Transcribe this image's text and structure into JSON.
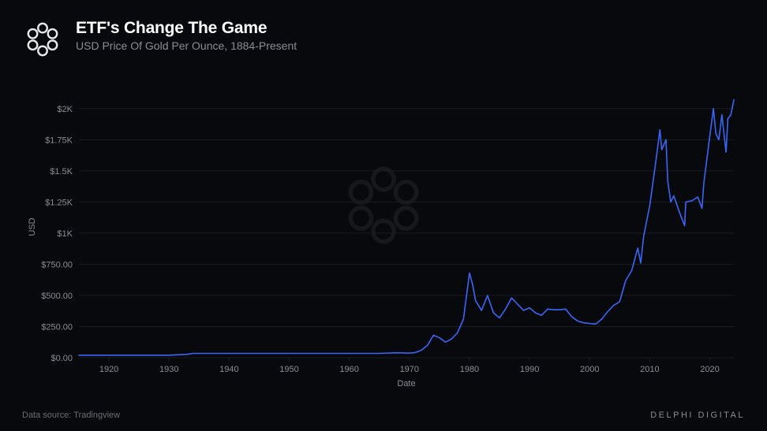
{
  "header": {
    "title": "ETF's Change The Game",
    "subtitle": "USD Price Of Gold Per Ounce, 1884-Present"
  },
  "footer": {
    "source_label": "Data source: Tradingview",
    "brand": "DELPHI DIGITAL"
  },
  "chart": {
    "type": "line",
    "background_color": "#08090c",
    "line_color": "#3a66f7",
    "line_width": 1.6,
    "grid_color": "#1a1c22",
    "axis_text_color": "#8b8d94",
    "title_color": "#ffffff",
    "subtitle_color": "#8b8d94",
    "xlabel": "Date",
    "ylabel": "USD",
    "xlim": [
      1915,
      2024
    ],
    "ylim": [
      0,
      2100
    ],
    "xticks": [
      1920,
      1930,
      1940,
      1950,
      1960,
      1970,
      1980,
      1990,
      2000,
      2010,
      2020
    ],
    "yticks": [
      {
        "v": 0,
        "label": "$0.00"
      },
      {
        "v": 250,
        "label": "$250.00"
      },
      {
        "v": 500,
        "label": "$500.00"
      },
      {
        "v": 750,
        "label": "$750.00"
      },
      {
        "v": 1000,
        "label": "$1K"
      },
      {
        "v": 1250,
        "label": "$1.25K"
      },
      {
        "v": 1500,
        "label": "$1.5K"
      },
      {
        "v": 1750,
        "label": "$1.75K"
      },
      {
        "v": 2000,
        "label": "$2K"
      }
    ],
    "title_fontsize": 21,
    "subtitle_fontsize": 14,
    "axis_fontsize": 11,
    "series": [
      {
        "x": 1915,
        "y": 20
      },
      {
        "x": 1920,
        "y": 20
      },
      {
        "x": 1925,
        "y": 20
      },
      {
        "x": 1930,
        "y": 20
      },
      {
        "x": 1933,
        "y": 27
      },
      {
        "x": 1934,
        "y": 35
      },
      {
        "x": 1940,
        "y": 35
      },
      {
        "x": 1945,
        "y": 35
      },
      {
        "x": 1950,
        "y": 35
      },
      {
        "x": 1955,
        "y": 35
      },
      {
        "x": 1960,
        "y": 35
      },
      {
        "x": 1965,
        "y": 35
      },
      {
        "x": 1968,
        "y": 40
      },
      {
        "x": 1970,
        "y": 37
      },
      {
        "x": 1971,
        "y": 42
      },
      {
        "x": 1972,
        "y": 60
      },
      {
        "x": 1973,
        "y": 100
      },
      {
        "x": 1974,
        "y": 180
      },
      {
        "x": 1975,
        "y": 160
      },
      {
        "x": 1976,
        "y": 125
      },
      {
        "x": 1977,
        "y": 150
      },
      {
        "x": 1978,
        "y": 200
      },
      {
        "x": 1979,
        "y": 310
      },
      {
        "x": 1980,
        "y": 680
      },
      {
        "x": 1980.5,
        "y": 590
      },
      {
        "x": 1981,
        "y": 460
      },
      {
        "x": 1982,
        "y": 380
      },
      {
        "x": 1983,
        "y": 500
      },
      {
        "x": 1984,
        "y": 360
      },
      {
        "x": 1985,
        "y": 320
      },
      {
        "x": 1986,
        "y": 390
      },
      {
        "x": 1987,
        "y": 480
      },
      {
        "x": 1988,
        "y": 430
      },
      {
        "x": 1989,
        "y": 380
      },
      {
        "x": 1990,
        "y": 400
      },
      {
        "x": 1991,
        "y": 360
      },
      {
        "x": 1992,
        "y": 340
      },
      {
        "x": 1993,
        "y": 390
      },
      {
        "x": 1994,
        "y": 385
      },
      {
        "x": 1995,
        "y": 385
      },
      {
        "x": 1996,
        "y": 390
      },
      {
        "x": 1997,
        "y": 330
      },
      {
        "x": 1998,
        "y": 295
      },
      {
        "x": 1999,
        "y": 280
      },
      {
        "x": 2000,
        "y": 275
      },
      {
        "x": 2001,
        "y": 270
      },
      {
        "x": 2002,
        "y": 310
      },
      {
        "x": 2003,
        "y": 370
      },
      {
        "x": 2004,
        "y": 420
      },
      {
        "x": 2005,
        "y": 450
      },
      {
        "x": 2006,
        "y": 620
      },
      {
        "x": 2007,
        "y": 700
      },
      {
        "x": 2008,
        "y": 880
      },
      {
        "x": 2008.5,
        "y": 760
      },
      {
        "x": 2009,
        "y": 980
      },
      {
        "x": 2010,
        "y": 1220
      },
      {
        "x": 2011,
        "y": 1570
      },
      {
        "x": 2011.7,
        "y": 1830
      },
      {
        "x": 2012,
        "y": 1670
      },
      {
        "x": 2012.7,
        "y": 1750
      },
      {
        "x": 2013,
        "y": 1420
      },
      {
        "x": 2013.5,
        "y": 1250
      },
      {
        "x": 2014,
        "y": 1300
      },
      {
        "x": 2015,
        "y": 1160
      },
      {
        "x": 2015.8,
        "y": 1060
      },
      {
        "x": 2016,
        "y": 1250
      },
      {
        "x": 2017,
        "y": 1260
      },
      {
        "x": 2018,
        "y": 1290
      },
      {
        "x": 2018.7,
        "y": 1200
      },
      {
        "x": 2019,
        "y": 1400
      },
      {
        "x": 2020,
        "y": 1780
      },
      {
        "x": 2020.6,
        "y": 2000
      },
      {
        "x": 2021,
        "y": 1800
      },
      {
        "x": 2021.5,
        "y": 1750
      },
      {
        "x": 2022,
        "y": 1950
      },
      {
        "x": 2022.7,
        "y": 1650
      },
      {
        "x": 2023,
        "y": 1920
      },
      {
        "x": 2023.5,
        "y": 1950
      },
      {
        "x": 2024,
        "y": 2070
      }
    ]
  },
  "logo": {
    "stroke": "#e8e8ea",
    "stroke_width": 2.2
  },
  "watermark": {
    "stroke": "#ffffff",
    "size": 110
  }
}
